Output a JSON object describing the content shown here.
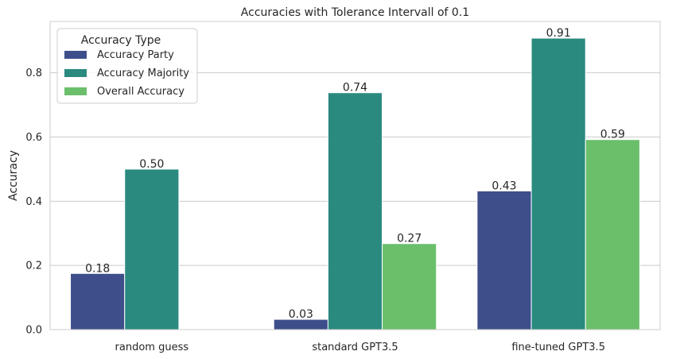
{
  "chart_data": {
    "type": "bar",
    "title": "Accuracies with Tolerance Intervall of 0.1",
    "xlabel": "",
    "ylabel": "Accuracy",
    "ylim": [
      0,
      0.96
    ],
    "yticks": [
      "0.0",
      "0.2",
      "0.4",
      "0.6",
      "0.8"
    ],
    "ytick_values": [
      0,
      0.2,
      0.4,
      0.6,
      0.8
    ],
    "categories": [
      "random guess",
      "standard GPT3.5",
      "fine-tuned GPT3.5"
    ],
    "grid": true,
    "legend": {
      "title": "Accuracy Type",
      "placement": "top-left"
    },
    "series": [
      {
        "name": "Accuracy Party",
        "color": "#3d4e8a",
        "values": [
          0.175,
          0.032,
          0.432
        ],
        "labels": [
          "0.18",
          "0.03",
          "0.43"
        ]
      },
      {
        "name": "Accuracy Majority",
        "color": "#2a8a80",
        "values": [
          0.5,
          0.738,
          0.908
        ],
        "labels": [
          "0.50",
          "0.74",
          "0.91"
        ]
      },
      {
        "name": "Overall Accuracy",
        "color": "#6bbf6b",
        "values": [
          0.0,
          0.268,
          0.592
        ],
        "labels": [
          "",
          "0.27",
          "0.59"
        ]
      }
    ]
  }
}
